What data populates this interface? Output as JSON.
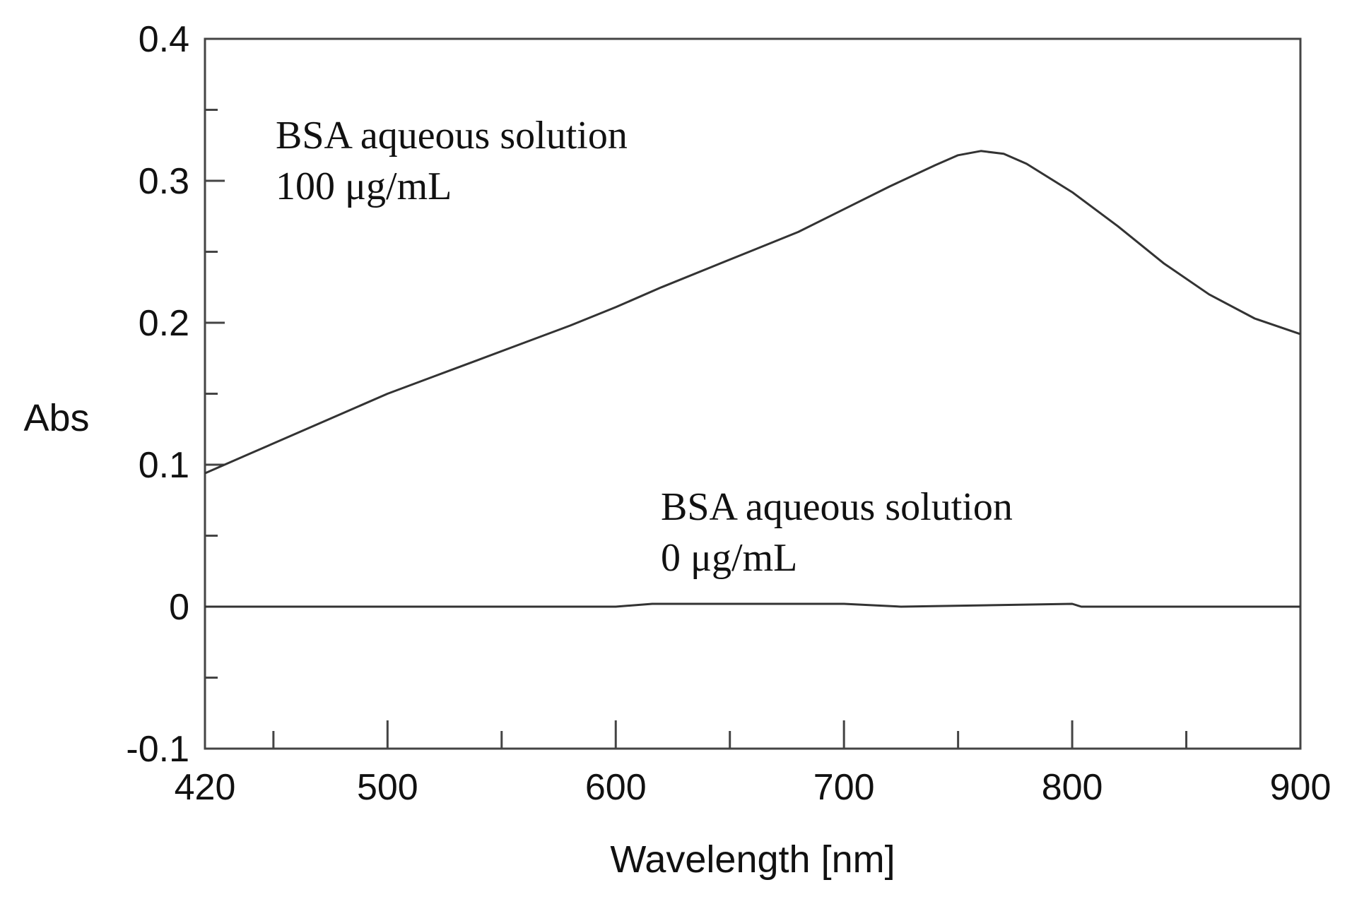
{
  "chart_data": {
    "type": "line",
    "xlabel": "Wavelength [nm]",
    "ylabel": "Abs",
    "xlim": [
      420,
      900
    ],
    "ylim": [
      -0.1,
      0.4
    ],
    "x_ticks": [
      "420",
      "500",
      "600",
      "700",
      "800",
      "900"
    ],
    "y_ticks": [
      "-0.1",
      "0",
      "0.1",
      "0.2",
      "0.3",
      "0.4"
    ],
    "grid": false,
    "series": [
      {
        "x": [
          420,
          440,
          460,
          480,
          500,
          520,
          540,
          560,
          580,
          600,
          620,
          640,
          660,
          680,
          700,
          720,
          740,
          750,
          760,
          770,
          780,
          800,
          820,
          840,
          860,
          880,
          900
        ],
        "y": [
          0.094,
          0.108,
          0.122,
          0.136,
          0.15,
          0.162,
          0.174,
          0.186,
          0.198,
          0.211,
          0.225,
          0.238,
          0.251,
          0.264,
          0.28,
          0.296,
          0.311,
          0.318,
          0.321,
          0.319,
          0.312,
          0.292,
          0.268,
          0.242,
          0.22,
          0.203,
          0.192
        ]
      },
      {
        "x": [
          420,
          500,
          600,
          616,
          640,
          700,
          725,
          800,
          804,
          900
        ],
        "y": [
          0.0,
          0.0,
          0.0,
          0.002,
          0.002,
          0.002,
          0.0,
          0.002,
          0.0,
          0.0
        ]
      }
    ],
    "annotations": [
      {
        "lines": [
          "BSA aqueous solution",
          "100 μg/mL"
        ]
      },
      {
        "lines": [
          "BSA aqueous solution",
          "0 μg/mL"
        ]
      }
    ]
  }
}
